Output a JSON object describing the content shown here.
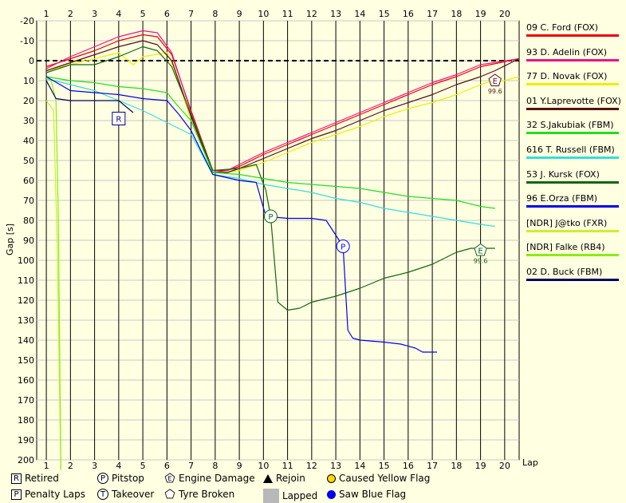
{
  "chart_data": {
    "type": "line",
    "title": "",
    "xlabel": "Lap",
    "ylabel": "Gap [s]",
    "x_ticks": [
      1,
      2,
      3,
      4,
      5,
      6,
      7,
      8,
      9,
      10,
      11,
      12,
      13,
      14,
      15,
      16,
      17,
      18,
      19,
      20
    ],
    "y_ticks": [
      -20,
      -10,
      0,
      10,
      20,
      30,
      40,
      50,
      60,
      70,
      80,
      90,
      100,
      110,
      120,
      130,
      140,
      150,
      160,
      170,
      180,
      190,
      200
    ],
    "xlim": [
      0.6,
      20.6
    ],
    "ylim": [
      -20,
      200
    ],
    "y_inverted": true,
    "grid": true,
    "leader_line": 0,
    "legend_position": "right",
    "series": [
      {
        "name": "09 C. Ford (FOX)",
        "color": "#ee0000",
        "points": [
          [
            1,
            3
          ],
          [
            2,
            -1
          ],
          [
            3,
            -5
          ],
          [
            4,
            -10
          ],
          [
            5,
            -13
          ],
          [
            5.6,
            -12
          ],
          [
            6.2,
            -3
          ],
          [
            7,
            25
          ],
          [
            7.9,
            55
          ],
          [
            8.5,
            55
          ],
          [
            9,
            53
          ],
          [
            10,
            47
          ],
          [
            11,
            42
          ],
          [
            12,
            37
          ],
          [
            13,
            32
          ],
          [
            14,
            27
          ],
          [
            15,
            22
          ],
          [
            16,
            17
          ],
          [
            17,
            12
          ],
          [
            18,
            8
          ],
          [
            19,
            3
          ],
          [
            20.6,
            -1
          ]
        ]
      },
      {
        "name": "93 D. Adelin (FOX)",
        "color": "#ee1188",
        "points": [
          [
            1,
            4
          ],
          [
            2,
            -2
          ],
          [
            3,
            -7
          ],
          [
            4,
            -12
          ],
          [
            5,
            -15
          ],
          [
            5.6,
            -14
          ],
          [
            6.2,
            -4
          ],
          [
            7,
            26
          ],
          [
            7.9,
            56
          ],
          [
            8.5,
            55
          ],
          [
            9,
            52
          ],
          [
            10,
            46
          ],
          [
            11,
            41
          ],
          [
            12,
            36
          ],
          [
            13,
            31
          ],
          [
            14,
            26
          ],
          [
            15,
            21
          ],
          [
            16,
            16
          ],
          [
            17,
            11
          ],
          [
            18,
            7
          ],
          [
            19,
            2
          ],
          [
            20.6,
            -1
          ]
        ]
      },
      {
        "name": "77 D. Novak (FOX)",
        "color": "#eeee00",
        "points": [
          [
            1,
            5
          ],
          [
            2,
            2
          ],
          [
            3,
            -1
          ],
          [
            4,
            -4
          ],
          [
            4.6,
            2
          ],
          [
            5,
            -2
          ],
          [
            6,
            -4
          ],
          [
            6.3,
            4
          ],
          [
            7,
            30
          ],
          [
            7.9,
            56
          ],
          [
            8.5,
            56
          ],
          [
            9,
            55
          ],
          [
            10,
            51
          ],
          [
            11,
            46
          ],
          [
            12,
            41
          ],
          [
            13,
            37
          ],
          [
            14,
            33
          ],
          [
            15,
            28
          ],
          [
            16,
            24
          ],
          [
            17,
            21
          ],
          [
            18,
            17
          ],
          [
            19,
            12
          ],
          [
            19.5,
            10
          ],
          [
            20,
            10
          ],
          [
            20.6,
            8
          ]
        ]
      },
      {
        "name": "01 Y.Laprevotte (FOX)",
        "color": "#551111",
        "points": [
          [
            1,
            5
          ],
          [
            2,
            1
          ],
          [
            3,
            -3
          ],
          [
            4,
            -7
          ],
          [
            5,
            -10
          ],
          [
            5.6,
            -8
          ],
          [
            6.2,
            0
          ],
          [
            7,
            28
          ],
          [
            7.9,
            56
          ],
          [
            8.5,
            56
          ],
          [
            9,
            54
          ],
          [
            10,
            49
          ],
          [
            11,
            44
          ],
          [
            12,
            39
          ],
          [
            13,
            35
          ],
          [
            14,
            30
          ],
          [
            15,
            25
          ],
          [
            16,
            21
          ],
          [
            17,
            17
          ],
          [
            18,
            12
          ],
          [
            19,
            8
          ],
          [
            19.6,
            5
          ],
          [
            20.6,
            -1
          ]
        ]
      },
      {
        "name": "32 S.Jakubiak (FBM)",
        "color": "#22dd22",
        "points": [
          [
            1,
            8
          ],
          [
            2,
            10
          ],
          [
            3,
            11
          ],
          [
            4,
            13
          ],
          [
            5,
            14
          ],
          [
            6,
            16
          ],
          [
            6.4,
            22
          ],
          [
            7,
            30
          ],
          [
            7.9,
            56
          ],
          [
            9,
            57
          ],
          [
            10,
            59
          ],
          [
            11,
            61
          ],
          [
            12,
            62
          ],
          [
            13,
            63
          ],
          [
            14,
            64
          ],
          [
            15,
            66
          ],
          [
            16,
            68
          ],
          [
            17,
            69
          ],
          [
            18,
            70
          ],
          [
            19,
            73
          ],
          [
            19.6,
            74
          ]
        ]
      },
      {
        "name": "616 T. Russell (FBM)",
        "color": "#33dddd",
        "points": [
          [
            1,
            9
          ],
          [
            2,
            12
          ],
          [
            3,
            15
          ],
          [
            4,
            20
          ],
          [
            5,
            25
          ],
          [
            6,
            31
          ],
          [
            7,
            37
          ],
          [
            7.9,
            57
          ],
          [
            9,
            59
          ],
          [
            10,
            62
          ],
          [
            11,
            64
          ],
          [
            12,
            66
          ],
          [
            13,
            69
          ],
          [
            14,
            71
          ],
          [
            15,
            74
          ],
          [
            16,
            76
          ],
          [
            17,
            78
          ],
          [
            18,
            80
          ],
          [
            19,
            82
          ],
          [
            19.6,
            83
          ]
        ]
      },
      {
        "name": "53 J. Kursk (FOX)",
        "color": "#116611",
        "points": [
          [
            1,
            6
          ],
          [
            2,
            2
          ],
          [
            3,
            2
          ],
          [
            4,
            -2
          ],
          [
            5,
            -7
          ],
          [
            5.6,
            -5
          ],
          [
            6.2,
            3
          ],
          [
            7,
            27
          ],
          [
            7.9,
            55
          ],
          [
            9,
            54
          ],
          [
            9.7,
            52
          ],
          [
            10.1,
            65
          ],
          [
            10.3,
            78
          ],
          [
            10.6,
            121
          ],
          [
            11,
            125
          ],
          [
            11.5,
            124
          ],
          [
            12,
            121
          ],
          [
            13,
            118
          ],
          [
            14,
            114
          ],
          [
            15,
            109
          ],
          [
            16,
            106
          ],
          [
            17,
            102
          ],
          [
            18,
            96
          ],
          [
            18.6,
            94
          ],
          [
            19.6,
            94
          ]
        ]
      },
      {
        "name": "96 E.Orza (FBM)",
        "color": "#0000ee",
        "points": [
          [
            1,
            8
          ],
          [
            2,
            15
          ],
          [
            3,
            16
          ],
          [
            4,
            17
          ],
          [
            5,
            19
          ],
          [
            6,
            20
          ],
          [
            6.5,
            27
          ],
          [
            7,
            35
          ],
          [
            7.9,
            57
          ],
          [
            9,
            60
          ],
          [
            9.7,
            61
          ],
          [
            10.1,
            78
          ],
          [
            11,
            79
          ],
          [
            12,
            79
          ],
          [
            12.6,
            80
          ],
          [
            13.3,
            93
          ],
          [
            13.5,
            135
          ],
          [
            13.7,
            139
          ],
          [
            14,
            140
          ],
          [
            15,
            141
          ],
          [
            15.7,
            142
          ],
          [
            16.3,
            144
          ],
          [
            16.6,
            146
          ],
          [
            17.2,
            146
          ]
        ]
      },
      {
        "name": "[NDR] J@tko (FXR)",
        "color": "#ccee33",
        "points": [
          [
            1,
            20
          ],
          [
            1.3,
            25
          ],
          [
            1.45,
            90
          ],
          [
            1.6,
            205
          ]
        ]
      },
      {
        "name": "[NDR] Falke (RB4)",
        "color": "#88ee11",
        "points": [
          [
            1,
            9
          ],
          [
            1.2,
            10
          ],
          [
            1.4,
            20
          ],
          [
            1.5,
            80
          ],
          [
            1.6,
            205
          ]
        ]
      },
      {
        "name": "02 D. Buck (FBM)",
        "color": "#000066",
        "points": [
          [
            1,
            10
          ],
          [
            1.4,
            19
          ],
          [
            2,
            20
          ],
          [
            3,
            20
          ],
          [
            4,
            20
          ],
          [
            4.6,
            26
          ]
        ]
      }
    ],
    "annotations": [
      {
        "symbol": "square",
        "text": "R",
        "x": 4,
        "y": 29
      },
      {
        "symbol": "circle",
        "text": "P",
        "x": 10.3,
        "y": 78
      },
      {
        "symbol": "circle",
        "text": "P",
        "x": 13.3,
        "y": 93
      },
      {
        "symbol": "pentagon",
        "text": "E",
        "x": 19.6,
        "y": 10,
        "label": "99.6"
      },
      {
        "symbol": "pentagon",
        "text": "E",
        "x": 19,
        "y": 95,
        "label": "99.6"
      }
    ]
  },
  "symbol_key": [
    {
      "symbol": "square",
      "text": "R",
      "label": "Retired"
    },
    {
      "symbol": "circle",
      "text": "P",
      "label": "Pitstop"
    },
    {
      "symbol": "pentagon",
      "text": "E",
      "label": "Engine Damage"
    },
    {
      "symbol": "triangle",
      "text": "",
      "label": "Rejoin"
    },
    {
      "symbol": "yellow-dot",
      "text": "",
      "label": "Caused Yellow Flag"
    },
    {
      "symbol": "square",
      "text": "P",
      "label": "Penalty Laps"
    },
    {
      "symbol": "circle",
      "text": "T",
      "label": "Takeover"
    },
    {
      "symbol": "pentagon",
      "text": "",
      "label": "Tyre Broken"
    },
    {
      "symbol": "grey-box",
      "text": "",
      "label": "Lapped"
    },
    {
      "symbol": "blue-dot",
      "text": "",
      "label": "Saw Blue Flag"
    }
  ],
  "colors": {
    "background": "#ffffe1",
    "plot_background": "#ffffe1"
  }
}
